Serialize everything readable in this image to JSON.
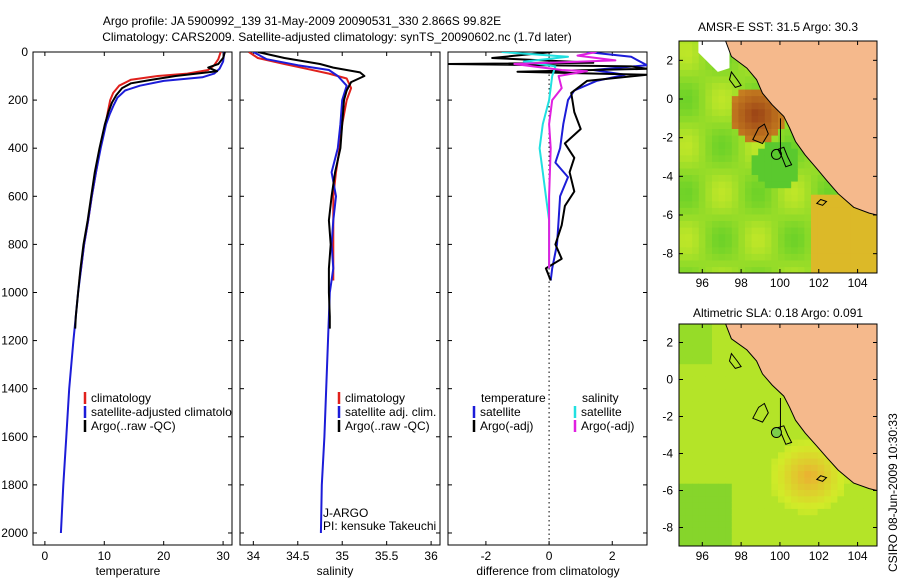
{
  "title": {
    "line1": "Argo profile: JA 5900992_139 31-May-2009 20090531_330 2.866S 99.82E",
    "line2": "Climatology: CARS2009. Satellite-adjusted climatology: synTS_20090602.nc (1.7d later)"
  },
  "side_stamp": "CSIRO 08-Jun-2009 10:30:33",
  "colors": {
    "climatology": "#e0201c",
    "satellite": "#1c1cd8",
    "argo": "#000000",
    "sat_sal": "#20e0e0",
    "argo_sal": "#e020e0",
    "land": "#f5b98c"
  },
  "chart_data": [
    {
      "type": "line",
      "id": "temperature",
      "xlabel": "temperature",
      "ylabel": "",
      "xlim": [
        -2,
        31.5
      ],
      "ylim": [
        2050,
        0
      ],
      "xticks": [
        0,
        10,
        20,
        30
      ],
      "yticks": [
        0,
        200,
        400,
        600,
        800,
        1000,
        1200,
        1400,
        1600,
        1800,
        2000
      ],
      "legend_position": "lower-middle",
      "series": [
        {
          "name": "climatology",
          "color": "#e0201c",
          "points": [
            [
              29.6,
              0
            ],
            [
              29.2,
              30
            ],
            [
              28.5,
              55
            ],
            [
              27.5,
              75
            ],
            [
              24,
              90
            ],
            [
              19,
              100
            ],
            [
              14.5,
              115
            ],
            [
              12.5,
              140
            ],
            [
              11.5,
              170
            ],
            [
              11,
              200
            ],
            [
              10.6,
              250
            ],
            [
              10.2,
              300
            ],
            [
              9.3,
              400
            ],
            [
              8.6,
              500
            ],
            [
              7.9,
              600
            ],
            [
              7.3,
              700
            ],
            [
              6.6,
              800
            ],
            [
              6.1,
              900
            ],
            [
              5.8,
              950
            ]
          ]
        },
        {
          "name": "satellite-adjusted climatology",
          "color": "#1c1cd8",
          "points": [
            [
              30.2,
              0
            ],
            [
              30,
              40
            ],
            [
              29.4,
              70
            ],
            [
              28.5,
              90
            ],
            [
              26.5,
              105
            ],
            [
              20,
              120
            ],
            [
              16,
              140
            ],
            [
              13.5,
              160
            ],
            [
              12.2,
              190
            ],
            [
              11.6,
              220
            ],
            [
              10.9,
              260
            ],
            [
              10.3,
              300
            ],
            [
              9.4,
              400
            ],
            [
              8.6,
              500
            ],
            [
              7.9,
              600
            ],
            [
              7.3,
              700
            ],
            [
              6.6,
              800
            ],
            [
              6.1,
              900
            ],
            [
              5.6,
              1000
            ],
            [
              5.2,
              1100
            ],
            [
              4.8,
              1200
            ],
            [
              4.1,
              1400
            ],
            [
              3.6,
              1600
            ],
            [
              3.1,
              1800
            ],
            [
              2.7,
              2000
            ]
          ]
        },
        {
          "name": "Argo(..raw -QC)",
          "color": "#000000",
          "points": [
            [
              30.3,
              0
            ],
            [
              30,
              25
            ],
            [
              29.2,
              50
            ],
            [
              27.5,
              65
            ],
            [
              29,
              80
            ],
            [
              25.5,
              90
            ],
            [
              22,
              100
            ],
            [
              18,
              115
            ],
            [
              14.5,
              130
            ],
            [
              13,
              150
            ],
            [
              12,
              180
            ],
            [
              11.3,
              210
            ],
            [
              10.7,
              250
            ],
            [
              10.1,
              300
            ],
            [
              9.2,
              400
            ],
            [
              8.4,
              500
            ],
            [
              7.8,
              600
            ],
            [
              7.2,
              700
            ],
            [
              6.5,
              800
            ],
            [
              6,
              900
            ],
            [
              5.6,
              1000
            ],
            [
              5.2,
              1100
            ],
            [
              5.1,
              1150
            ]
          ]
        }
      ]
    },
    {
      "type": "line",
      "id": "salinity",
      "xlabel": "salinity",
      "ylabel": "",
      "xlim": [
        33.85,
        36.1
      ],
      "ylim": [
        2050,
        0
      ],
      "xticks": [
        34,
        34.5,
        35,
        35.5,
        36
      ],
      "legend_position": "lower-middle",
      "annotation": {
        "line1": "J-ARGO",
        "line2": "PI: kensuke Takeuchi"
      },
      "series": [
        {
          "name": "climatology",
          "color": "#e0201c",
          "points": [
            [
              33.95,
              0
            ],
            [
              34.05,
              25
            ],
            [
              34.35,
              50
            ],
            [
              34.6,
              70
            ],
            [
              34.85,
              90
            ],
            [
              35.05,
              110
            ],
            [
              35.1,
              150
            ],
            [
              35.05,
              200
            ],
            [
              35.0,
              300
            ],
            [
              34.97,
              400
            ],
            [
              34.93,
              500
            ],
            [
              34.9,
              600
            ],
            [
              34.9,
              700
            ],
            [
              34.9,
              800
            ],
            [
              34.9,
              950
            ]
          ]
        },
        {
          "name": "satellite adj. clim.",
          "color": "#1c1cd8",
          "points": [
            [
              34.0,
              0
            ],
            [
              34.15,
              30
            ],
            [
              34.5,
              55
            ],
            [
              34.85,
              75
            ],
            [
              34.95,
              100
            ],
            [
              35.05,
              140
            ],
            [
              35.0,
              200
            ],
            [
              34.98,
              300
            ],
            [
              34.95,
              400
            ],
            [
              34.88,
              500
            ],
            [
              34.93,
              600
            ],
            [
              34.9,
              700
            ],
            [
              34.88,
              800
            ],
            [
              34.9,
              900
            ],
            [
              34.86,
              1000
            ],
            [
              34.84,
              1200
            ],
            [
              34.82,
              1400
            ],
            [
              34.8,
              1600
            ],
            [
              34.77,
              1800
            ],
            [
              34.76,
              2000
            ]
          ]
        },
        {
          "name": "Argo(..raw -QC)",
          "color": "#000000",
          "points": [
            [
              34.05,
              0
            ],
            [
              34.35,
              25
            ],
            [
              34.75,
              50
            ],
            [
              34.9,
              65
            ],
            [
              35.2,
              85
            ],
            [
              35.25,
              100
            ],
            [
              35.1,
              125
            ],
            [
              35.05,
              160
            ],
            [
              35.02,
              200
            ],
            [
              35.0,
              300
            ],
            [
              34.98,
              400
            ],
            [
              34.92,
              500
            ],
            [
              34.88,
              600
            ],
            [
              34.85,
              700
            ],
            [
              34.87,
              800
            ],
            [
              34.85,
              900
            ],
            [
              34.85,
              1000
            ],
            [
              34.86,
              1100
            ],
            [
              34.86,
              1150
            ]
          ]
        }
      ]
    },
    {
      "type": "line",
      "id": "difference",
      "xlabel": "difference from climatology",
      "ylabel": "",
      "xlim": [
        -3.2,
        3.1
      ],
      "ylim": [
        2050,
        0
      ],
      "xticks": [
        -2,
        0,
        2
      ],
      "legend_position": "lower-middle",
      "legend_headers": [
        "temperature",
        "salinity"
      ],
      "series": [
        {
          "name": "satellite",
          "group": "temperature",
          "color": "#1c1cd8",
          "points": [
            [
              1.2,
              0
            ],
            [
              2.6,
              20
            ],
            [
              3.1,
              55
            ],
            [
              1.4,
              75
            ],
            [
              2.4,
              95
            ],
            [
              1.5,
              120
            ],
            [
              0.8,
              160
            ],
            [
              0.6,
              200
            ],
            [
              0.45,
              300
            ],
            [
              0.35,
              400
            ],
            [
              0.2,
              460
            ],
            [
              0.6,
              520
            ],
            [
              0.35,
              600
            ],
            [
              0.3,
              700
            ],
            [
              0.25,
              800
            ],
            [
              0.1,
              900
            ],
            [
              0.05,
              950
            ]
          ]
        },
        {
          "name": "Argo(-adj)",
          "group": "temperature",
          "color": "#000000",
          "points": [
            [
              0.1,
              0
            ],
            [
              -1.8,
              25
            ],
            [
              1.4,
              45
            ],
            [
              -3.2,
              50
            ],
            [
              2.6,
              60
            ],
            [
              3.1,
              70
            ],
            [
              -1,
              82
            ],
            [
              1.5,
              90
            ],
            [
              3.1,
              95
            ],
            [
              1.2,
              120
            ],
            [
              0.7,
              170
            ],
            [
              0.8,
              250
            ],
            [
              1.0,
              320
            ],
            [
              0.5,
              380
            ],
            [
              0.8,
              440
            ],
            [
              0.65,
              500
            ],
            [
              0.8,
              580
            ],
            [
              0.5,
              640
            ],
            [
              0.4,
              720
            ],
            [
              0.2,
              800
            ],
            [
              0.4,
              860
            ],
            [
              -0.1,
              900
            ],
            [
              0.05,
              950
            ]
          ]
        },
        {
          "name": "satellite",
          "group": "salinity",
          "color": "#20e0e0",
          "points": [
            [
              -1.5,
              0
            ],
            [
              0.6,
              20
            ],
            [
              -0.8,
              40
            ],
            [
              0.2,
              60
            ],
            [
              0.1,
              100
            ],
            [
              0.0,
              200
            ],
            [
              -0.2,
              300
            ],
            [
              -0.3,
              400
            ],
            [
              -0.2,
              500
            ],
            [
              -0.1,
              600
            ],
            [
              0.0,
              700
            ],
            [
              0.0,
              800
            ],
            [
              0.0,
              900
            ]
          ]
        },
        {
          "name": "Argo(-adj)",
          "group": "salinity",
          "color": "#e020e0",
          "points": [
            [
              1.5,
              0
            ],
            [
              0.9,
              15
            ],
            [
              2.1,
              35
            ],
            [
              -1.1,
              50
            ],
            [
              0.4,
              75
            ],
            [
              1.2,
              80
            ],
            [
              0.3,
              100
            ],
            [
              0.4,
              150
            ],
            [
              0.1,
              200
            ],
            [
              0.0,
              300
            ],
            [
              0.05,
              400
            ],
            [
              0.0,
              600
            ],
            [
              0.0,
              800
            ],
            [
              0.0,
              900
            ]
          ]
        }
      ]
    },
    {
      "type": "heatmap",
      "id": "sst-map",
      "title": "AMSR-E SST: 31.5  Argo: 30.3",
      "xlim": [
        94.8,
        105
      ],
      "ylim": [
        -9,
        3
      ],
      "xticks": [
        96,
        98,
        100,
        102,
        104
      ],
      "yticks": [
        -8,
        -6,
        -4,
        -2,
        0,
        2
      ],
      "marker": {
        "lon": 99.82,
        "lat": -2.866
      }
    },
    {
      "type": "heatmap",
      "id": "sla-map",
      "title": "Altimetric SLA: 0.18  Argo: 0.091",
      "xlim": [
        94.8,
        105
      ],
      "ylim": [
        -9,
        3
      ],
      "xticks": [
        96,
        98,
        100,
        102,
        104
      ],
      "yticks": [
        -8,
        -6,
        -4,
        -2,
        0,
        2
      ],
      "marker": {
        "lon": 99.82,
        "lat": -2.866
      }
    }
  ]
}
